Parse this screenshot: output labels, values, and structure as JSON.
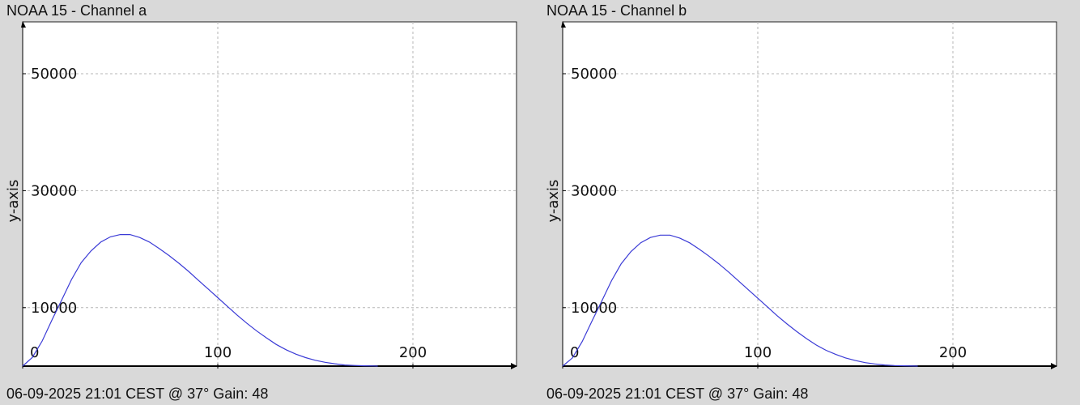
{
  "panels": [
    {
      "title": "NOAA 15 - Channel a",
      "footer": "06-09-2025 21:01 CEST @ 37° Gain: 48"
    },
    {
      "title": "NOAA 15 - Channel b",
      "footer": "06-09-2025 21:01 CEST @ 37° Gain: 48"
    }
  ],
  "chart_data": [
    {
      "type": "line",
      "title": "NOAA 15 - Channel a",
      "xlabel": "",
      "ylabel": "y-axis",
      "xlim": [
        0,
        255
      ],
      "ylim": [
        0,
        58000
      ],
      "xticks": [
        0,
        100,
        200
      ],
      "yticks": [
        10000,
        30000,
        50000
      ],
      "grid": true,
      "line_color": "#3b3bd6",
      "series": [
        {
          "x": [
            0,
            5,
            10,
            15,
            20,
            25,
            30,
            35,
            40,
            45,
            50,
            55,
            60,
            65,
            70,
            75,
            80,
            85,
            90,
            95,
            100,
            105,
            110,
            115,
            120,
            125,
            130,
            135,
            140,
            145,
            150,
            155,
            160,
            165,
            170,
            175,
            180,
            182
          ],
          "values": [
            0,
            1500,
            4300,
            7900,
            11300,
            14800,
            17700,
            19700,
            21200,
            22100,
            22500,
            22500,
            22000,
            21200,
            20100,
            18900,
            17600,
            16200,
            14700,
            13200,
            11700,
            10200,
            8700,
            7300,
            6000,
            4800,
            3700,
            2800,
            2050,
            1450,
            1000,
            650,
            400,
            200,
            110,
            55,
            25,
            0
          ]
        }
      ]
    },
    {
      "type": "line",
      "title": "NOAA 15 - Channel b",
      "xlabel": "",
      "ylabel": "y-axis",
      "xlim": [
        0,
        255
      ],
      "ylim": [
        0,
        58000
      ],
      "xticks": [
        0,
        100,
        200
      ],
      "yticks": [
        10000,
        30000,
        50000
      ],
      "grid": true,
      "line_color": "#3b3bd6",
      "series": [
        {
          "x": [
            0,
            5,
            10,
            15,
            20,
            25,
            30,
            35,
            40,
            45,
            50,
            55,
            60,
            65,
            70,
            75,
            80,
            85,
            90,
            95,
            100,
            105,
            110,
            115,
            120,
            125,
            130,
            135,
            140,
            145,
            150,
            155,
            160,
            165,
            170,
            175,
            180,
            182
          ],
          "values": [
            0,
            1400,
            4200,
            7700,
            11100,
            14600,
            17500,
            19600,
            21100,
            22000,
            22400,
            22400,
            21900,
            21100,
            20000,
            18800,
            17500,
            16100,
            14600,
            13100,
            11600,
            10100,
            8600,
            7200,
            5900,
            4700,
            3600,
            2700,
            2000,
            1400,
            950,
            600,
            380,
            190,
            100,
            50,
            20,
            0
          ]
        }
      ]
    }
  ]
}
